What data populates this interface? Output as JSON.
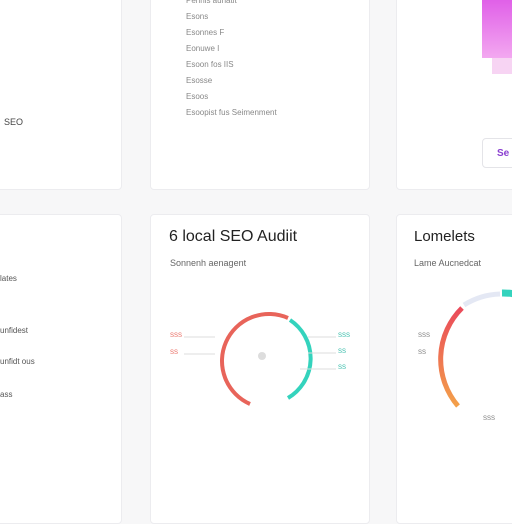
{
  "cards": {
    "top_left": {
      "label": "SEO"
    },
    "top_middle": {
      "items": [
        "Pennis aunatit",
        "Esons",
        "Esonnes F",
        "Eonuwe I",
        "Esoon fos IIS",
        "Esosse",
        "Esoos",
        "Esoopist fus Seimenment"
      ]
    },
    "top_right": {
      "button": "Se"
    },
    "middle_left": {
      "items": [
        "lates",
        "unfidest",
        "unfidt ous",
        "ass"
      ]
    },
    "middle_center": {
      "title": "6 local SEO Audiit",
      "subtitle": "Sonnenh aenagent",
      "left_labels": [
        "SSS",
        "SS"
      ],
      "right_labels": [
        "SSS",
        "SS",
        "SS"
      ]
    },
    "middle_right": {
      "title": "Lomelets",
      "subtitle": "Lame Aucnedcat",
      "left_labels": [
        "SSS",
        "SS"
      ],
      "bottom_label": "SSS"
    }
  }
}
